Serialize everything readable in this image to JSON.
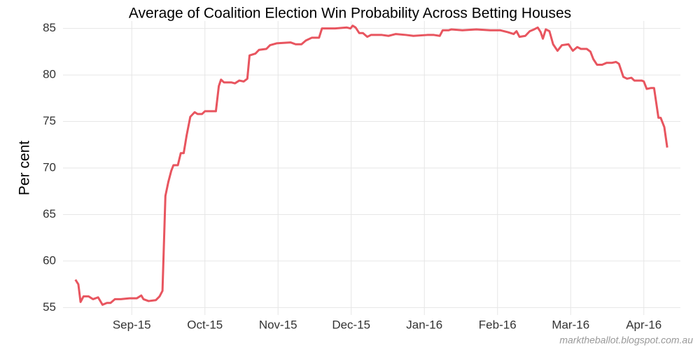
{
  "chart_data": {
    "type": "line",
    "title": "Average of Coalition Election Win Probability Across Betting Houses",
    "y_label": "Per cent",
    "annotation": "marktheballot.blogspot.com.au",
    "grid": true,
    "xlim": [
      -0.94,
      7.5
    ],
    "xticks": [
      {
        "value": 0,
        "label": "Sep-15"
      },
      {
        "value": 1,
        "label": "Oct-15"
      },
      {
        "value": 2,
        "label": "Nov-15"
      },
      {
        "value": 3,
        "label": "Dec-15"
      },
      {
        "value": 4,
        "label": "Jan-16"
      },
      {
        "value": 5,
        "label": "Feb-16"
      },
      {
        "value": 6,
        "label": "Mar-16"
      },
      {
        "value": 7,
        "label": "Apr-16"
      }
    ],
    "ylim": [
      54.2,
      85.8
    ],
    "yticks": [
      55,
      60,
      65,
      70,
      75,
      80,
      85
    ],
    "x": [
      -0.77,
      -0.73,
      -0.7,
      -0.66,
      -0.59,
      -0.53,
      -0.46,
      -0.4,
      -0.34,
      -0.29,
      -0.23,
      -0.15,
      -0.03,
      0.07,
      0.13,
      0.16,
      0.23,
      0.33,
      0.38,
      0.42,
      0.46,
      0.5,
      0.54,
      0.57,
      0.63,
      0.67,
      0.71,
      0.75,
      0.8,
      0.86,
      0.9,
      0.96,
      1.0,
      1.15,
      1.19,
      1.22,
      1.26,
      1.36,
      1.41,
      1.47,
      1.53,
      1.58,
      1.61,
      1.69,
      1.74,
      1.84,
      1.89,
      1.98,
      2.17,
      2.24,
      2.32,
      2.38,
      2.46,
      2.56,
      2.6,
      2.7,
      2.78,
      2.94,
      2.99,
      3.02,
      3.06,
      3.11,
      3.16,
      3.22,
      3.27,
      3.42,
      3.51,
      3.61,
      3.75,
      3.85,
      4.04,
      4.13,
      4.21,
      4.25,
      4.33,
      4.37,
      4.52,
      4.71,
      4.9,
      5.04,
      5.14,
      5.22,
      5.26,
      5.3,
      5.38,
      5.44,
      5.5,
      5.55,
      5.59,
      5.62,
      5.66,
      5.71,
      5.76,
      5.82,
      5.88,
      5.97,
      6.03,
      6.09,
      6.14,
      6.22,
      6.27,
      6.31,
      6.36,
      6.43,
      6.49,
      6.56,
      6.62,
      6.66,
      6.72,
      6.77,
      6.83,
      6.87,
      6.97,
      7.0,
      7.04,
      7.1,
      7.14,
      7.17,
      7.2,
      7.23,
      7.28,
      7.32
    ],
    "series": [
      {
        "name": "Coalition",
        "color": "#e8555f",
        "values": [
          58.0,
          57.5,
          55.6,
          56.2,
          56.2,
          55.9,
          56.1,
          55.3,
          55.5,
          55.5,
          55.9,
          55.9,
          56.0,
          56.0,
          56.3,
          55.9,
          55.7,
          55.8,
          56.2,
          56.8,
          67.0,
          68.5,
          69.7,
          70.3,
          70.3,
          71.6,
          71.6,
          73.5,
          75.5,
          76.0,
          75.8,
          75.8,
          76.1,
          76.1,
          78.8,
          79.5,
          79.2,
          79.2,
          79.1,
          79.4,
          79.3,
          79.6,
          82.1,
          82.3,
          82.7,
          82.8,
          83.2,
          83.4,
          83.5,
          83.3,
          83.3,
          83.7,
          84.0,
          84.0,
          85.0,
          85.0,
          85.0,
          85.1,
          85.0,
          85.3,
          85.1,
          84.5,
          84.5,
          84.1,
          84.3,
          84.3,
          84.2,
          84.4,
          84.3,
          84.2,
          84.3,
          84.3,
          84.2,
          84.8,
          84.8,
          84.9,
          84.8,
          84.9,
          84.8,
          84.8,
          84.6,
          84.4,
          84.7,
          84.1,
          84.2,
          84.7,
          84.9,
          85.1,
          84.6,
          83.9,
          84.9,
          84.7,
          83.3,
          82.6,
          83.2,
          83.3,
          82.6,
          83.0,
          82.8,
          82.8,
          82.5,
          81.7,
          81.1,
          81.1,
          81.3,
          81.3,
          81.4,
          81.2,
          79.8,
          79.6,
          79.7,
          79.4,
          79.4,
          79.3,
          78.5,
          78.6,
          78.6,
          77.0,
          75.4,
          75.4,
          74.4,
          72.2
        ]
      }
    ]
  }
}
